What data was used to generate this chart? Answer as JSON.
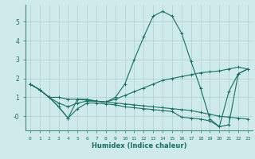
{
  "xlabel": "Humidex (Indice chaleur)",
  "background_color": "#ceeaea",
  "grid_color": "#aecece",
  "line_color": "#1a6e62",
  "xlim": [
    -0.5,
    23.5
  ],
  "ylim": [
    -0.75,
    5.9
  ],
  "series": [
    [
      1.7,
      1.4,
      1.0,
      0.5,
      -0.1,
      0.9,
      0.9,
      0.8,
      0.75,
      1.0,
      1.7,
      3.0,
      4.2,
      5.3,
      5.55,
      5.3,
      4.4,
      2.9,
      1.5,
      -0.15,
      -0.55,
      1.3,
      2.25,
      2.5
    ],
    [
      1.7,
      1.4,
      1.0,
      1.0,
      0.9,
      0.9,
      0.85,
      0.8,
      0.75,
      0.7,
      0.65,
      0.6,
      0.55,
      0.5,
      0.45,
      0.4,
      0.35,
      0.3,
      0.2,
      0.1,
      0.0,
      -0.05,
      -0.1,
      -0.15
    ],
    [
      1.7,
      1.4,
      1.0,
      0.7,
      0.5,
      0.7,
      0.8,
      0.8,
      0.75,
      0.9,
      1.1,
      1.3,
      1.5,
      1.7,
      1.9,
      2.0,
      2.1,
      2.2,
      2.3,
      2.35,
      2.4,
      2.5,
      2.6,
      2.5
    ],
    [
      1.7,
      1.4,
      1.0,
      0.5,
      -0.1,
      0.4,
      0.7,
      0.7,
      0.65,
      0.6,
      0.5,
      0.45,
      0.4,
      0.35,
      0.3,
      0.25,
      -0.05,
      -0.1,
      -0.15,
      -0.25,
      -0.55,
      -0.45,
      2.25,
      2.5
    ]
  ]
}
